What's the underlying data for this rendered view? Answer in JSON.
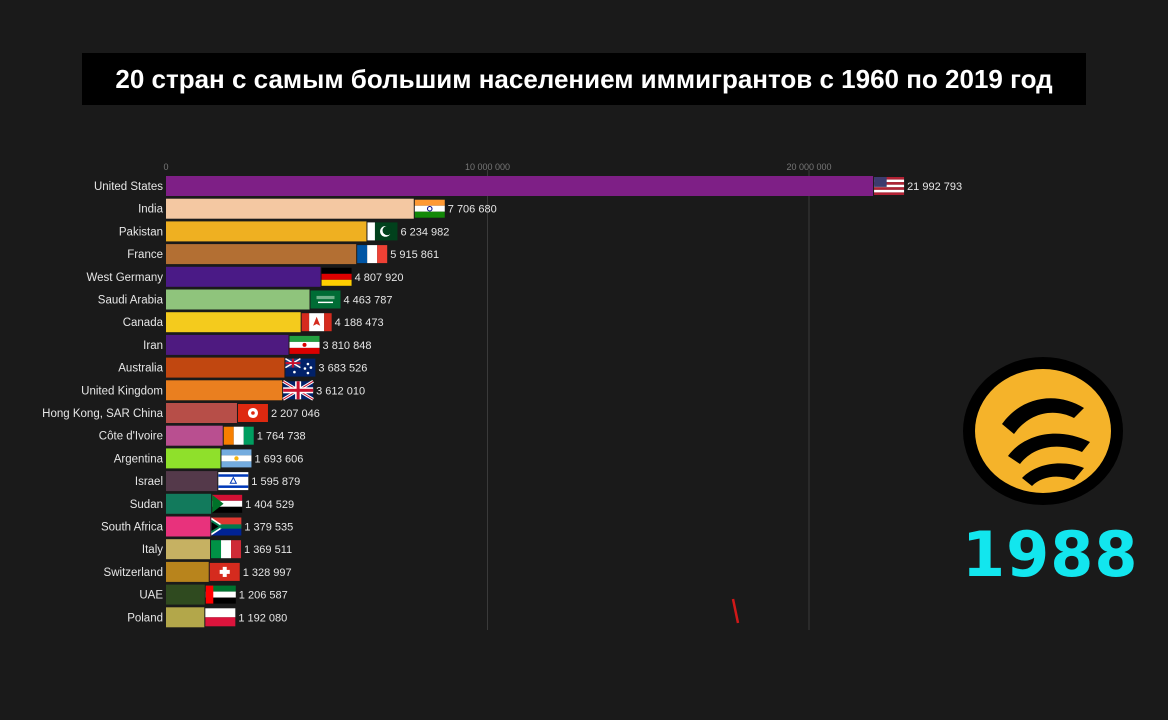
{
  "title": "20 стран с самым большим населением иммигрантов с 1960 по 2019 год",
  "year": "1988",
  "chart_data": {
    "type": "bar",
    "orientation": "horizontal",
    "xlim": [
      0,
      25000000
    ],
    "ticks": [
      {
        "value": 0,
        "label": "0"
      },
      {
        "value": 10000000,
        "label": "10 000 000"
      },
      {
        "value": 20000000,
        "label": "20 000 000"
      }
    ],
    "grid": true,
    "bars": [
      {
        "label": "United States",
        "value": 21992793,
        "value_label": "21 992 793",
        "color": "#7e1f86",
        "flag": "us"
      },
      {
        "label": "India",
        "value": 7706680,
        "value_label": "7 706 680",
        "color": "#f4c8a2",
        "flag": "in"
      },
      {
        "label": "Pakistan",
        "value": 6234982,
        "value_label": "6 234 982",
        "color": "#efb021",
        "flag": "pk"
      },
      {
        "label": "France",
        "value": 5915861,
        "value_label": "5 915 861",
        "color": "#b36f33",
        "flag": "fr"
      },
      {
        "label": "West Germany",
        "value": 4807920,
        "value_label": "4 807 920",
        "color": "#4a1a86",
        "flag": "de"
      },
      {
        "label": "Saudi Arabia",
        "value": 4463787,
        "value_label": "4 463 787",
        "color": "#8fc47c",
        "flag": "sa"
      },
      {
        "label": "Canada",
        "value": 4188473,
        "value_label": "4 188 473",
        "color": "#f4cb1d",
        "flag": "ca"
      },
      {
        "label": "Iran",
        "value": 3810848,
        "value_label": "3 810 848",
        "color": "#4e1a80",
        "flag": "ir"
      },
      {
        "label": "Australia",
        "value": 3683526,
        "value_label": "3 683 526",
        "color": "#c14710",
        "flag": "au"
      },
      {
        "label": "United Kingdom",
        "value": 3612010,
        "value_label": "3 612 010",
        "color": "#ea7f1f",
        "flag": "gb"
      },
      {
        "label": "Hong Kong, SAR China",
        "value": 2207046,
        "value_label": "2 207 046",
        "color": "#b74e48",
        "flag": "hk"
      },
      {
        "label": "Côte d'Ivoire",
        "value": 1764738,
        "value_label": "1 764 738",
        "color": "#b94f90",
        "flag": "ci"
      },
      {
        "label": "Argentina",
        "value": 1693606,
        "value_label": "1 693 606",
        "color": "#8fe02b",
        "flag": "ar"
      },
      {
        "label": "Israel",
        "value": 1595879,
        "value_label": "1 595 879",
        "color": "#54394a",
        "flag": "il"
      },
      {
        "label": "Sudan",
        "value": 1404529,
        "value_label": "1 404 529",
        "color": "#127a5c",
        "flag": "sd"
      },
      {
        "label": "South Africa",
        "value": 1379535,
        "value_label": "1 379 535",
        "color": "#e8327c",
        "flag": "za"
      },
      {
        "label": "Italy",
        "value": 1369511,
        "value_label": "1 369 511",
        "color": "#c6b162",
        "flag": "it"
      },
      {
        "label": "Switzerland",
        "value": 1328997,
        "value_label": "1 328 997",
        "color": "#b8841c",
        "flag": "ch"
      },
      {
        "label": "UAE",
        "value": 1206587,
        "value_label": "1 206 587",
        "color": "#2f4a1f",
        "flag": "ae"
      },
      {
        "label": "Poland",
        "value": 1192080,
        "value_label": "1 192 080",
        "color": "#b3a74a",
        "flag": "pl"
      }
    ]
  }
}
